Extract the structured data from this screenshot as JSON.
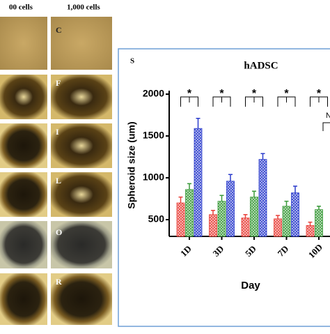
{
  "chart_data": {
    "type": "bar",
    "title": "hADSC",
    "panel": "S",
    "y_label": "Spheroid size (um)",
    "x_label": "Day",
    "categories": [
      "1D",
      "3D",
      "5D",
      "7D",
      "10D"
    ],
    "series": [
      {
        "color": "#e8413a",
        "values": [
          700,
          560,
          520,
          510,
          430
        ],
        "errors": [
          70,
          50,
          40,
          40,
          40
        ]
      },
      {
        "color": "#3a9a3a",
        "values": [
          860,
          720,
          770,
          660,
          620
        ],
        "errors": [
          70,
          70,
          70,
          60,
          40
        ]
      },
      {
        "color": "#2b3ccc",
        "values": [
          1590,
          960,
          1220,
          820,
          null
        ],
        "errors": [
          120,
          80,
          70,
          80,
          null
        ]
      }
    ],
    "ylim": [
      300,
      2000
    ],
    "yticks": [
      500,
      1000,
      1500,
      2000
    ],
    "annotations": [
      "*",
      "*",
      "*",
      "*",
      "*",
      "N"
    ]
  },
  "images": {
    "column_headers": [
      "00 cells",
      "1,000 cells"
    ],
    "panel_labels": [
      "C",
      "F",
      "I",
      "L",
      "O",
      "R"
    ]
  }
}
